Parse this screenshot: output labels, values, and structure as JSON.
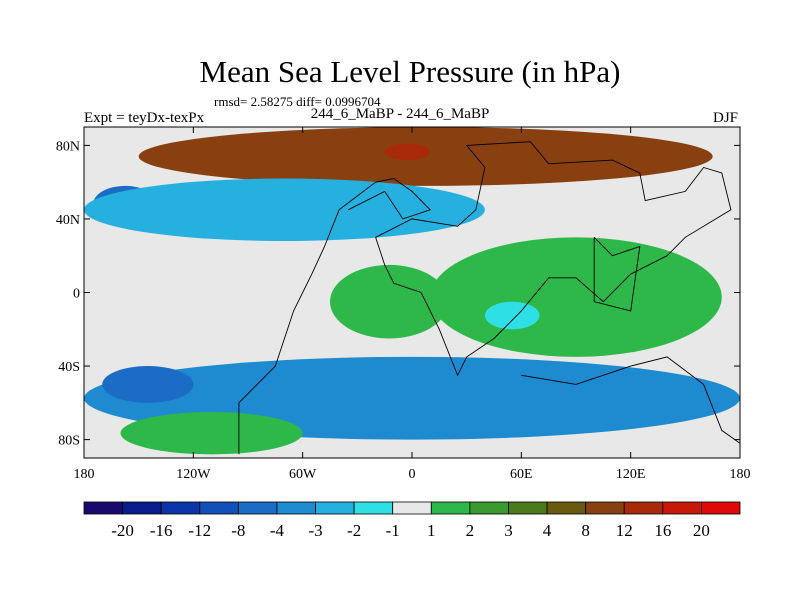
{
  "title": "Mean Sea Level Pressure (in hPa)",
  "stats_text": "rmsd= 2.58275 diff= 0.0996704",
  "left_label": "Expt = teyDx-texPx",
  "center_label": "244_6_MaBP - 244_6_MaBP",
  "right_label": "DJF",
  "chart_data": {
    "type": "heatmap",
    "title": "Mean Sea Level Pressure (in hPa)",
    "variable": "sea level pressure difference",
    "units": "hPa",
    "x_range": [
      -180,
      180
    ],
    "y_range": [
      -90,
      90
    ],
    "x_ticks": [
      {
        "value": -180,
        "label": "180"
      },
      {
        "value": -120,
        "label": "120W"
      },
      {
        "value": -60,
        "label": "60W"
      },
      {
        "value": 0,
        "label": "0"
      },
      {
        "value": 60,
        "label": "60E"
      },
      {
        "value": 120,
        "label": "120E"
      },
      {
        "value": 180,
        "label": "180"
      }
    ],
    "y_ticks": [
      {
        "value": 80,
        "label": "80N"
      },
      {
        "value": 40,
        "label": "40N"
      },
      {
        "value": 0,
        "label": "0"
      },
      {
        "value": -40,
        "label": "40S"
      },
      {
        "value": -80,
        "label": "80S"
      }
    ],
    "colorbar": {
      "levels": [
        "-20",
        "-16",
        "-12",
        "-8",
        "-4",
        "-3",
        "-2",
        "-1",
        "1",
        "2",
        "3",
        "4",
        "8",
        "12",
        "16",
        "20"
      ],
      "colors": [
        "#1a0a6e",
        "#0b1d8c",
        "#0b35a8",
        "#1050b8",
        "#1a6cc4",
        "#1e8ad0",
        "#25b0e0",
        "#2ee0e6",
        "#e8e8e8",
        "#2eb84a",
        "#3a9a30",
        "#4a7a1a",
        "#6a5a10",
        "#884010",
        "#a82a0a",
        "#c8180a",
        "#e00808"
      ]
    },
    "regions": [
      {
        "name": "north-polar-high",
        "level_index": 13,
        "lon": [
          -150,
          165
        ],
        "lat": [
          58,
          90
        ]
      },
      {
        "name": "arctic-high-core",
        "level_index": 14,
        "lon": [
          -15,
          10
        ],
        "lat": [
          72,
          81
        ]
      },
      {
        "name": "north-america-low",
        "level_index": 3,
        "lon": [
          -95,
          -10
        ],
        "lat": [
          34,
          56
        ]
      },
      {
        "name": "north-pacific-low",
        "level_index": 4,
        "lon": [
          -175,
          -140
        ],
        "lat": [
          38,
          58
        ]
      },
      {
        "name": "north-atlantic-low",
        "level_index": 6,
        "lon": [
          -180,
          40
        ],
        "lat": [
          28,
          62
        ]
      },
      {
        "name": "tropical-green",
        "level_index": 9,
        "lon": [
          -45,
          20
        ],
        "lat": [
          -25,
          15
        ]
      },
      {
        "name": "africa-green",
        "level_index": 9,
        "lon": [
          10,
          170
        ],
        "lat": [
          -35,
          30
        ]
      },
      {
        "name": "indian-ocean-cyan",
        "level_index": 7,
        "lon": [
          40,
          70
        ],
        "lat": [
          -20,
          -5
        ]
      },
      {
        "name": "southern-ocean-low",
        "level_index": 5,
        "lon": [
          -180,
          180
        ],
        "lat": [
          -80,
          -35
        ]
      },
      {
        "name": "south-pacific-low",
        "level_index": 4,
        "lon": [
          -170,
          -120
        ],
        "lat": [
          -60,
          -40
        ]
      },
      {
        "name": "antarctic-green",
        "level_index": 9,
        "lon": [
          -160,
          -60
        ],
        "lat": [
          -88,
          -65
        ]
      }
    ]
  }
}
